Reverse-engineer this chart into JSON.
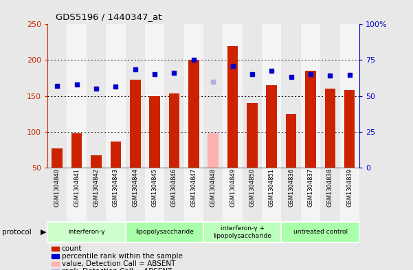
{
  "title": "GDS5196 / 1440347_at",
  "samples": [
    "GSM1304840",
    "GSM1304841",
    "GSM1304842",
    "GSM1304843",
    "GSM1304844",
    "GSM1304845",
    "GSM1304846",
    "GSM1304847",
    "GSM1304848",
    "GSM1304849",
    "GSM1304850",
    "GSM1304851",
    "GSM1304836",
    "GSM1304837",
    "GSM1304838",
    "GSM1304839"
  ],
  "counts": [
    77,
    98,
    67,
    86,
    173,
    150,
    153,
    200,
    98,
    220,
    140,
    165,
    125,
    185,
    160,
    158
  ],
  "ranks": [
    164,
    166,
    160,
    163,
    187,
    180,
    182,
    200,
    170,
    192,
    180,
    185,
    176,
    180,
    178,
    179
  ],
  "absent_count_idx": 8,
  "absent_rank_idx": 8,
  "absent_count_val": 98,
  "absent_rank_val": 170,
  "count_bar_color": "#cc2200",
  "absent_count_bar_color": "#ffb0b0",
  "rank_marker_color": "#0000cc",
  "absent_rank_marker_color": "#b0b0dd",
  "ylim_left": [
    50,
    250
  ],
  "ylim_right": [
    0,
    100
  ],
  "yticks_left": [
    50,
    100,
    150,
    200,
    250
  ],
  "yticks_right": [
    0,
    25,
    50,
    75,
    100
  ],
  "groups": [
    {
      "label": "interferon-γ",
      "start": 0,
      "end": 3,
      "color": "#ccffcc"
    },
    {
      "label": "lipopolysaccharide",
      "start": 4,
      "end": 7,
      "color": "#aaffaa"
    },
    {
      "label": "interferon-γ +\nlipopolysaccharide",
      "start": 8,
      "end": 11,
      "color": "#bbffbb"
    },
    {
      "label": "untreated control",
      "start": 12,
      "end": 15,
      "color": "#aaffaa"
    }
  ],
  "bg_even": "#e8e8e8",
  "bg_odd": "#f4f4f4",
  "fig_bg": "#e8e8e8",
  "figsize": [
    6.01,
    3.93
  ],
  "dpi": 100
}
